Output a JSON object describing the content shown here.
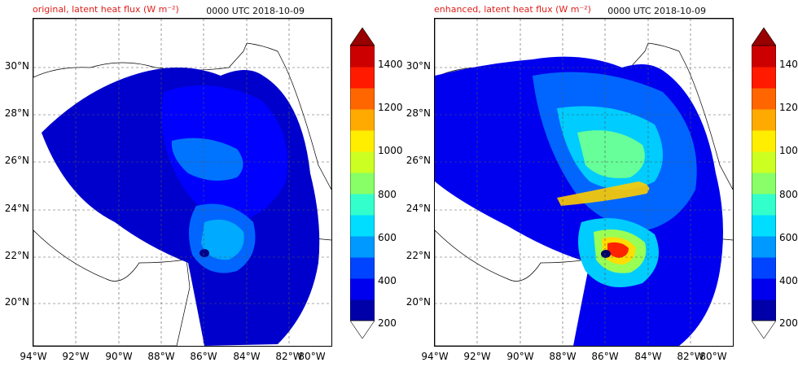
{
  "panels": [
    {
      "title": "original, latent heat flux (W m⁻²)",
      "time": "0000 UTC 2018-10-09",
      "field": "original"
    },
    {
      "title": "enhanced, latent heat flux (W m⁻²)",
      "time": "0000 UTC 2018-10-09",
      "field": "enhanced"
    }
  ],
  "map_extent": {
    "lon": [
      -94,
      -80
    ],
    "lat": [
      18,
      32
    ]
  },
  "lat_ticks": [
    {
      "value": 30,
      "label": "30°N"
    },
    {
      "value": 28,
      "label": "28°N"
    },
    {
      "value": 26,
      "label": "26°N"
    },
    {
      "value": 24,
      "label": "24°N"
    },
    {
      "value": 22,
      "label": "22°N"
    },
    {
      "value": 20,
      "label": "20°N"
    }
  ],
  "lon_ticks": [
    {
      "value": -94,
      "label": "94°W"
    },
    {
      "value": -92,
      "label": "92°W"
    },
    {
      "value": -90,
      "label": "90°W"
    },
    {
      "value": -88,
      "label": "88°W"
    },
    {
      "value": -86,
      "label": "86°W"
    },
    {
      "value": -84,
      "label": "84°W"
    },
    {
      "value": -82,
      "label": "82°W"
    },
    {
      "value": -80,
      "label": "80°W"
    }
  ],
  "colorbar": {
    "labels": [
      "1400",
      "1200",
      "1000",
      "800",
      "600",
      "400",
      "200"
    ],
    "colors": [
      "#0000a8",
      "#0000ee",
      "#0044ff",
      "#0099ff",
      "#00ddff",
      "#33ffcc",
      "#88ff66",
      "#ccff22",
      "#ffee00",
      "#ffaa00",
      "#ff6600",
      "#ff1a00",
      "#cc0000"
    ],
    "top_cap_color": "#990000",
    "bottom_cap_color": "#ffffff"
  }
}
